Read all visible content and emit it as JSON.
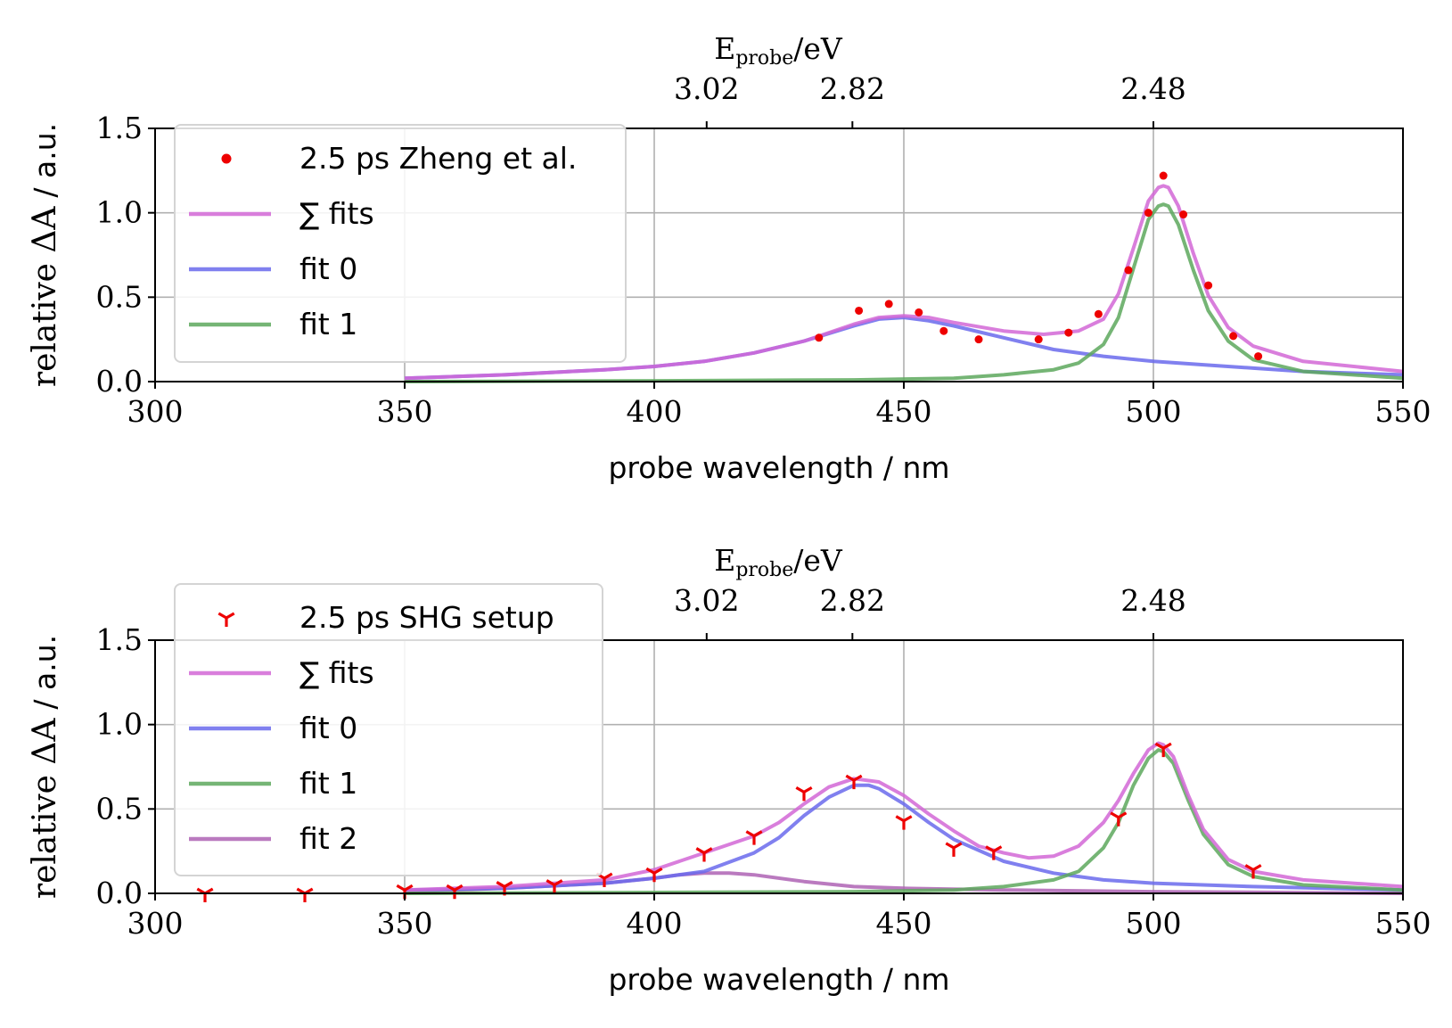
{
  "chart_data": [
    {
      "type": "line",
      "xlabel": "probe wavelength / nm",
      "ylabel_main": "relative ΔA",
      "ylabel_unit": "/ a.u.",
      "top_label_main": "E",
      "top_label_sub": "probe",
      "top_label_unit": "/eV",
      "xlim": [
        300,
        550
      ],
      "ylim": [
        0,
        1.5
      ],
      "xticks": [
        "300",
        "350",
        "400",
        "450",
        "500",
        "550"
      ],
      "yticks": [
        "0.0",
        "0.5",
        "1.0",
        "1.5"
      ],
      "top_ticks": [
        {
          "x": 410.5,
          "label": "3.02"
        },
        {
          "x": 439.7,
          "label": "2.82"
        },
        {
          "x": 500.0,
          "label": "2.48"
        }
      ],
      "grid": true,
      "legend_position": "upper-left",
      "colors": {
        "data": "#ee0000",
        "sum": "#d267d6",
        "fit0": "#6a6aec",
        "fit1": "#5da85d",
        "fit2": "#ae63b4"
      },
      "legend": [
        {
          "label": "2.5 ps Zheng et al.",
          "kind": "dot"
        },
        {
          "label": "∑ fits",
          "kind": "sum"
        },
        {
          "label": "fit 0",
          "kind": "fit0"
        },
        {
          "label": "fit 1",
          "kind": "fit1"
        }
      ],
      "scatter": {
        "marker": "dot",
        "x": [
          433,
          441,
          447,
          453,
          458,
          465,
          477,
          483,
          489,
          495,
          499,
          502,
          506,
          511,
          516,
          521
        ],
        "y": [
          0.26,
          0.42,
          0.46,
          0.41,
          0.3,
          0.25,
          0.25,
          0.29,
          0.4,
          0.66,
          1.0,
          1.22,
          0.99,
          0.57,
          0.27,
          0.15
        ]
      },
      "series": [
        {
          "key": "fit0",
          "x": [
            350,
            370,
            390,
            400,
            410,
            420,
            430,
            440,
            445,
            450,
            455,
            460,
            470,
            480,
            490,
            500,
            510,
            520,
            530,
            550
          ],
          "y": [
            0.02,
            0.04,
            0.07,
            0.09,
            0.12,
            0.17,
            0.24,
            0.33,
            0.37,
            0.38,
            0.36,
            0.33,
            0.26,
            0.19,
            0.15,
            0.12,
            0.1,
            0.08,
            0.06,
            0.04
          ]
        },
        {
          "key": "fit1",
          "x": [
            350,
            400,
            440,
            460,
            470,
            480,
            485,
            490,
            493,
            496,
            499,
            501,
            502,
            503,
            505,
            508,
            511,
            515,
            520,
            530,
            550
          ],
          "y": [
            0.0,
            0.005,
            0.01,
            0.02,
            0.04,
            0.07,
            0.11,
            0.22,
            0.38,
            0.67,
            0.96,
            1.04,
            1.05,
            1.04,
            0.93,
            0.66,
            0.42,
            0.24,
            0.13,
            0.06,
            0.02
          ]
        },
        {
          "key": "sum",
          "x": [
            350,
            370,
            390,
            400,
            410,
            420,
            430,
            440,
            445,
            450,
            455,
            460,
            470,
            478,
            485,
            490,
            493,
            496,
            499,
            501,
            502,
            503,
            505,
            508,
            511,
            515,
            520,
            530,
            550
          ],
          "y": [
            0.02,
            0.04,
            0.07,
            0.09,
            0.12,
            0.17,
            0.24,
            0.34,
            0.38,
            0.39,
            0.38,
            0.35,
            0.3,
            0.28,
            0.3,
            0.37,
            0.52,
            0.79,
            1.07,
            1.15,
            1.16,
            1.15,
            1.04,
            0.76,
            0.51,
            0.32,
            0.21,
            0.12,
            0.06
          ]
        }
      ]
    },
    {
      "type": "line",
      "xlabel": "probe wavelength / nm",
      "ylabel_main": "relative ΔA",
      "ylabel_unit": "/ a.u.",
      "top_label_main": "E",
      "top_label_sub": "probe",
      "top_label_unit": "/eV",
      "xlim": [
        300,
        550
      ],
      "ylim": [
        0,
        1.5
      ],
      "xticks": [
        "300",
        "350",
        "400",
        "450",
        "500",
        "550"
      ],
      "yticks": [
        "0.0",
        "0.5",
        "1.0",
        "1.5"
      ],
      "top_ticks": [
        {
          "x": 410.5,
          "label": "3.02"
        },
        {
          "x": 439.7,
          "label": "2.82"
        },
        {
          "x": 500.0,
          "label": "2.48"
        }
      ],
      "grid": true,
      "legend_position": "upper-left",
      "colors": {
        "data": "#ee0000",
        "sum": "#d267d6",
        "fit0": "#6a6aec",
        "fit1": "#5da85d",
        "fit2": "#ae63b4"
      },
      "legend": [
        {
          "label": "2.5 ps SHG setup",
          "kind": "tri"
        },
        {
          "label": "∑ fits",
          "kind": "sum"
        },
        {
          "label": "fit 0",
          "kind": "fit0"
        },
        {
          "label": "fit 1",
          "kind": "fit1"
        },
        {
          "label": "fit 2",
          "kind": "fit2"
        }
      ],
      "scatter": {
        "marker": "tri",
        "x": [
          310,
          330,
          350,
          360,
          370,
          380,
          390,
          400,
          410,
          420,
          430,
          440,
          450,
          460,
          468,
          493,
          502,
          520
        ],
        "y": [
          0.0,
          0.0,
          0.02,
          0.02,
          0.04,
          0.05,
          0.09,
          0.12,
          0.24,
          0.34,
          0.6,
          0.67,
          0.43,
          0.27,
          0.25,
          0.45,
          0.86,
          0.14
        ]
      },
      "series": [
        {
          "key": "fit2",
          "x": [
            350,
            370,
            390,
            400,
            405,
            410,
            415,
            420,
            430,
            440,
            450,
            470,
            500,
            550
          ],
          "y": [
            0.01,
            0.03,
            0.06,
            0.09,
            0.11,
            0.12,
            0.12,
            0.11,
            0.07,
            0.04,
            0.03,
            0.02,
            0.01,
            0.0
          ]
        },
        {
          "key": "fit0",
          "x": [
            350,
            370,
            390,
            400,
            410,
            420,
            425,
            430,
            435,
            440,
            443,
            445,
            450,
            455,
            460,
            470,
            480,
            490,
            500,
            520,
            550
          ],
          "y": [
            0.02,
            0.03,
            0.06,
            0.09,
            0.13,
            0.24,
            0.33,
            0.46,
            0.57,
            0.64,
            0.64,
            0.62,
            0.53,
            0.42,
            0.32,
            0.19,
            0.12,
            0.08,
            0.06,
            0.04,
            0.02
          ]
        },
        {
          "key": "fit1",
          "x": [
            350,
            440,
            460,
            470,
            480,
            485,
            490,
            493,
            496,
            499,
            501,
            502,
            504,
            507,
            510,
            515,
            520,
            530,
            550
          ],
          "y": [
            0.0,
            0.01,
            0.02,
            0.04,
            0.08,
            0.13,
            0.27,
            0.42,
            0.64,
            0.8,
            0.85,
            0.84,
            0.77,
            0.55,
            0.35,
            0.17,
            0.1,
            0.05,
            0.02
          ]
        },
        {
          "key": "sum",
          "x": [
            350,
            370,
            390,
            400,
            410,
            420,
            425,
            430,
            435,
            440,
            445,
            450,
            455,
            460,
            465,
            470,
            475,
            480,
            485,
            490,
            493,
            496,
            499,
            501,
            502,
            504,
            507,
            510,
            515,
            520,
            530,
            550
          ],
          "y": [
            0.02,
            0.04,
            0.08,
            0.14,
            0.24,
            0.34,
            0.42,
            0.53,
            0.63,
            0.68,
            0.66,
            0.58,
            0.47,
            0.37,
            0.28,
            0.24,
            0.21,
            0.22,
            0.28,
            0.42,
            0.55,
            0.71,
            0.85,
            0.89,
            0.88,
            0.81,
            0.58,
            0.38,
            0.2,
            0.13,
            0.08,
            0.04
          ]
        }
      ]
    }
  ]
}
